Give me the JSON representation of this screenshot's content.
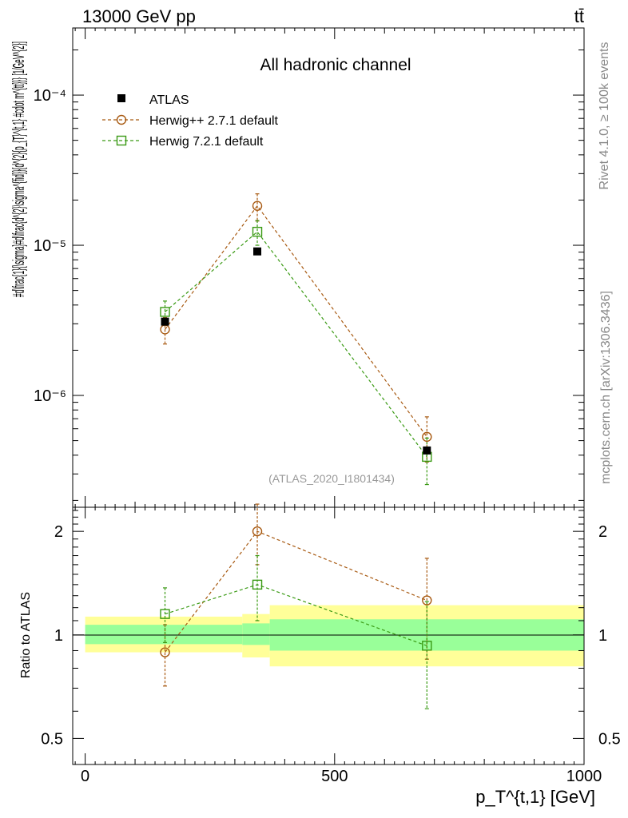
{
  "header": {
    "energy_label": "13000 GeV pp",
    "process_label": "tt̄"
  },
  "side_text": {
    "rivet_label": "Rivet 4.1.0, ≥ 100k events",
    "source_label": "mcplots.cern.ch [arXiv:1306.3436]"
  },
  "colors": {
    "atlas": "#000000",
    "herwigpp": "#a85a12",
    "herwig7": "#3a9a14",
    "band_inner": "#99ff99",
    "band_outer": "#ffff99"
  },
  "chart_data": [
    {
      "type": "scatter",
      "title": "All hadronic channel",
      "watermark": "(ATLAS_2020_I1801434)",
      "ylabel": "#d\\frac{1}{\\sigma}#d\\frac{d^{2}\\sigma^{fid}}{d^{2}{p_{T}^{t,1} #cdot m^{tt}}} [1/GeV^{2}]",
      "yscale": "log",
      "ylim": [
        1.8e-07,
        0.00028
      ],
      "y_ticks": [
        {
          "value": 1e-06,
          "label": "10⁻⁶"
        },
        {
          "value": 1e-05,
          "label": "10⁻⁵"
        },
        {
          "value": 0.0001,
          "label": "10⁻⁴"
        }
      ],
      "xlim": [
        -25,
        1000
      ],
      "legend": {
        "position": "top-left",
        "entries": [
          "ATLAS",
          "Herwig++ 2.7.1 default",
          "Herwig 7.2.1 default"
        ]
      },
      "series": [
        {
          "name": "ATLAS",
          "marker": "filled-square",
          "points": [
            {
              "x": 160,
              "y": 3.1e-06
            },
            {
              "x": 345,
              "y": 9.1e-06
            },
            {
              "x": 685,
              "y": 4.3e-07
            }
          ]
        },
        {
          "name": "Herwig++ 2.7.1 default",
          "marker": "open-circle",
          "points": [
            {
              "x": 160,
              "y": 2.75e-06,
              "ylo": 2.2e-06,
              "yhi": 3.3e-06
            },
            {
              "x": 345,
              "y": 1.83e-05,
              "ylo": 1.45e-05,
              "yhi": 2.2e-05
            },
            {
              "x": 685,
              "y": 5.3e-07,
              "ylo": 3.6e-07,
              "yhi": 7.2e-07
            }
          ]
        },
        {
          "name": "Herwig 7.2.1 default",
          "marker": "open-square",
          "points": [
            {
              "x": 160,
              "y": 3.6e-06,
              "ylo": 3e-06,
              "yhi": 4.25e-06
            },
            {
              "x": 345,
              "y": 1.23e-05,
              "ylo": 1e-05,
              "yhi": 1.46e-05
            },
            {
              "x": 685,
              "y": 3.9e-07,
              "ylo": 2.55e-07,
              "yhi": 5.2e-07
            }
          ]
        }
      ]
    },
    {
      "type": "scatter",
      "ylabel": "Ratio to ATLAS",
      "xlabel": "p_T^{t,1} [GeV]",
      "yscale": "log",
      "ylim": [
        0.42,
        2.35
      ],
      "y_ticks": [
        {
          "value": 0.5,
          "label": "0.5"
        },
        {
          "value": 1,
          "label": "1"
        },
        {
          "value": 2,
          "label": "2"
        }
      ],
      "xlim": [
        -25,
        1000
      ],
      "x_ticks": [
        {
          "value": 0,
          "label": "0"
        },
        {
          "value": 500,
          "label": "500"
        },
        {
          "value": 1000,
          "label": "1000"
        }
      ],
      "bands": [
        {
          "x0": 0,
          "x1": 315,
          "inner": [
            0.94,
            1.07
          ],
          "outer": [
            0.89,
            1.13
          ]
        },
        {
          "x0": 315,
          "x1": 370,
          "inner": [
            0.935,
            1.08
          ],
          "outer": [
            0.86,
            1.15
          ]
        },
        {
          "x0": 370,
          "x1": 1000,
          "inner": [
            0.9,
            1.11
          ],
          "outer": [
            0.81,
            1.22
          ]
        }
      ],
      "series": [
        {
          "name": "Herwig++ 2.7.1 default",
          "marker": "open-circle",
          "points": [
            {
              "x": 160,
              "y": 0.89,
              "ylo": 0.71,
              "yhi": 1.07
            },
            {
              "x": 345,
              "y": 2.0,
              "ylo": 1.6,
              "yhi": 2.4
            },
            {
              "x": 685,
              "y": 1.26,
              "ylo": 0.85,
              "yhi": 1.67
            }
          ]
        },
        {
          "name": "Herwig 7.2.1 default",
          "marker": "open-square",
          "points": [
            {
              "x": 160,
              "y": 1.15,
              "ylo": 0.95,
              "yhi": 1.37
            },
            {
              "x": 345,
              "y": 1.4,
              "ylo": 1.1,
              "yhi": 1.7
            },
            {
              "x": 685,
              "y": 0.93,
              "ylo": 0.61,
              "yhi": 1.25
            }
          ]
        }
      ]
    }
  ]
}
